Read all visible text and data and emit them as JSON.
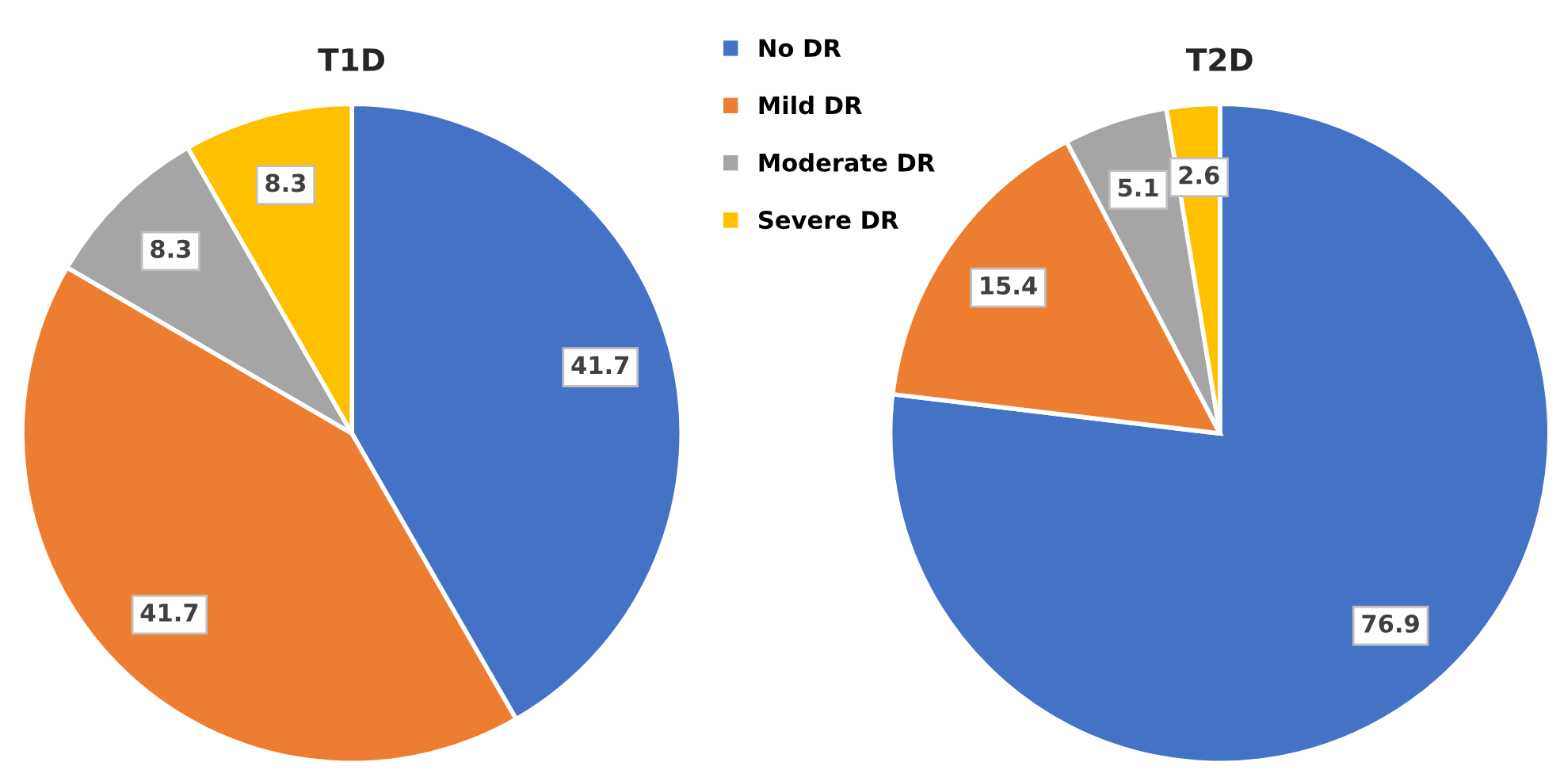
{
  "chart_data": [
    {
      "type": "pie",
      "title": "T1D",
      "categories": [
        "No DR",
        "Mild DR",
        "Moderate DR",
        "Severe DR"
      ],
      "values": [
        41.7,
        41.7,
        8.3,
        8.3
      ],
      "colors": [
        "#4472c4",
        "#ed7d31",
        "#a5a5a5",
        "#ffc000"
      ],
      "data_labels": true,
      "legend": "right"
    },
    {
      "type": "pie",
      "title": "T2D",
      "categories": [
        null,
        null,
        null,
        null
      ],
      "values": [
        76.9,
        15.4,
        5.1,
        2.6
      ],
      "colors": [
        "#4472c4",
        "#ed7d31",
        "#a5a5a5",
        "#ffc000"
      ],
      "data_labels": true
    }
  ]
}
